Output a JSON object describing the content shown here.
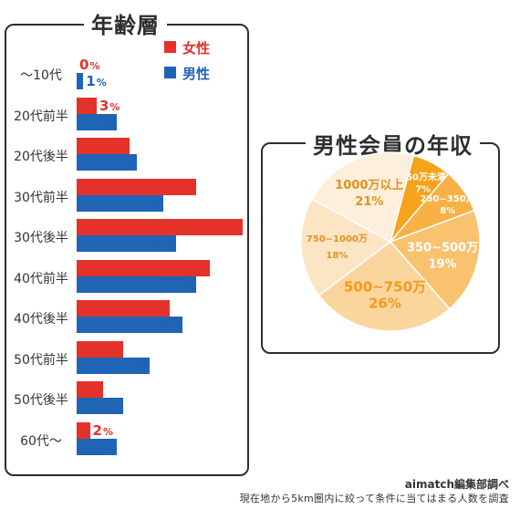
{
  "chart_data": [
    {
      "type": "bar",
      "title": "年齢層",
      "categories": [
        "〜10代",
        "20代前半",
        "20代後半",
        "30代前半",
        "30代後半",
        "40代前半",
        "40代後半",
        "50代前半",
        "50代後半",
        "60代〜"
      ],
      "series": [
        {
          "name": "女性",
          "color": "#e4322b",
          "values": [
            0,
            3,
            8,
            18,
            25,
            20,
            14,
            7,
            4,
            2
          ]
        },
        {
          "name": "男性",
          "color": "#1f64b5",
          "values": [
            1,
            6,
            9,
            13,
            15,
            18,
            16,
            11,
            7,
            6
          ]
        }
      ],
      "unit": "%"
    },
    {
      "type": "pie",
      "title": "男性会員の年収",
      "slices": [
        {
          "label": "250万未満",
          "value": 7,
          "color": "#f7a21b",
          "text_color": "#ffffff"
        },
        {
          "label": "250~350万",
          "value": 8,
          "color": "#f8b145",
          "text_color": "#ffffff"
        },
        {
          "label": "350~500万",
          "value": 19,
          "color": "#f9c26f",
          "text_color": "#ffffff"
        },
        {
          "label": "500~750万",
          "value": 26,
          "color": "#fbd59e",
          "text_color": "#f59a17"
        },
        {
          "label": "750~1000万",
          "value": 18,
          "color": "#fce5c5",
          "text_color": "#e3911c"
        },
        {
          "label": "1000万以上",
          "value": 21,
          "color": "#fdefdc",
          "text_color": "#e3911c"
        }
      ],
      "unit": "%"
    }
  ],
  "footer": {
    "credit": "aimatch編集部調べ",
    "note": "現在地から5km圏内に絞って条件に当てはまる人数を調査"
  }
}
